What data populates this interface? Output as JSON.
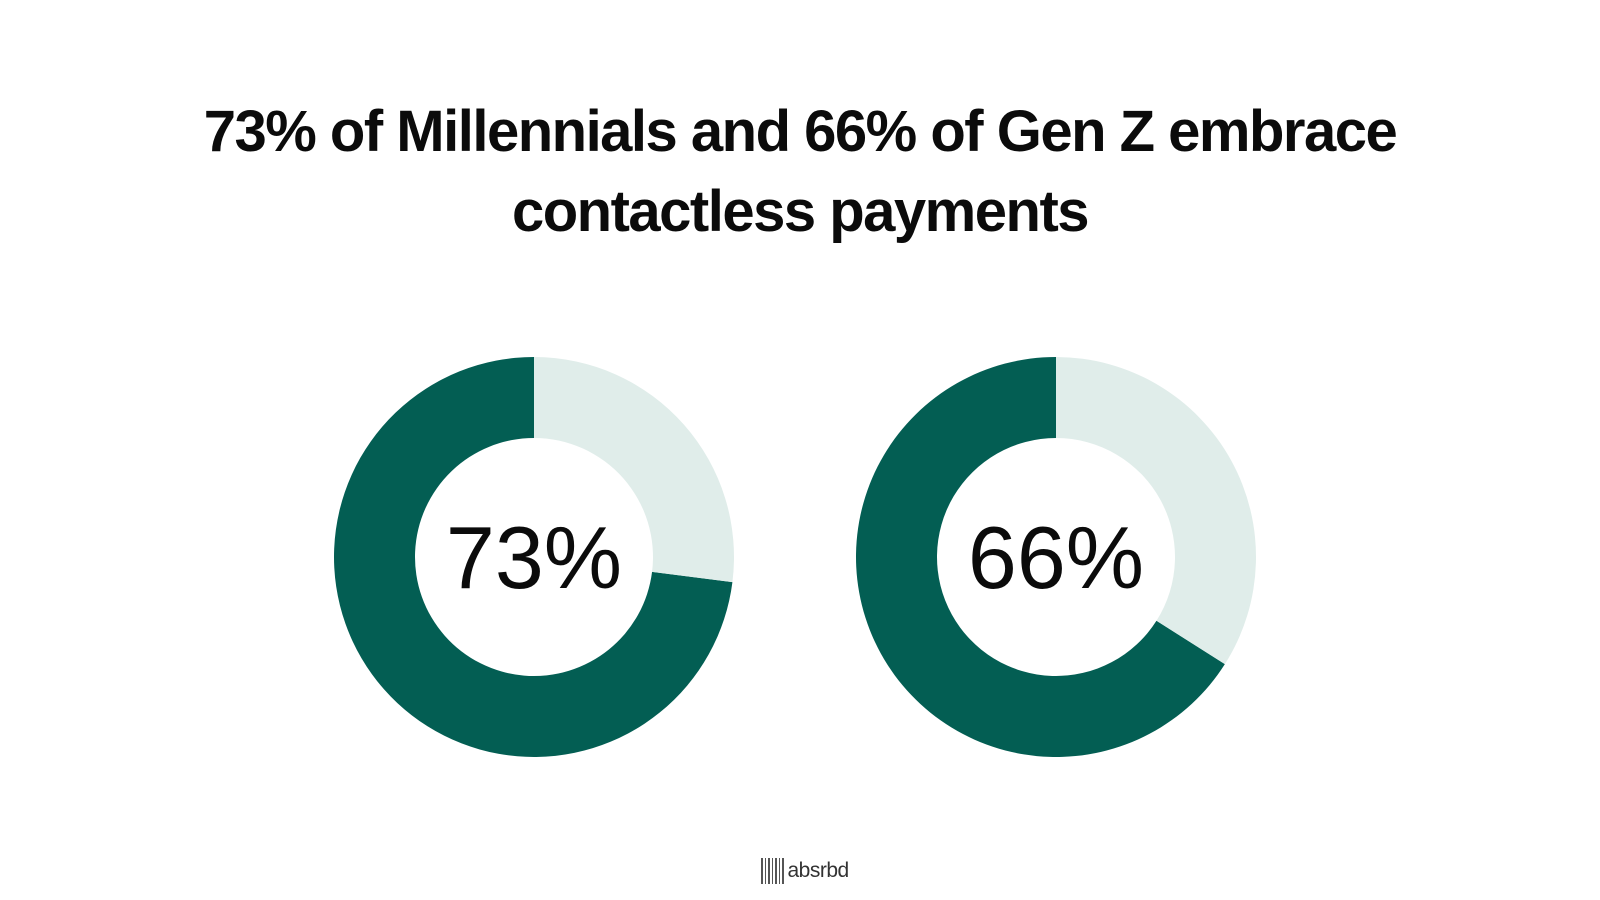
{
  "title": "73% of Millennials and 66% of Gen Z embrace contactless payments",
  "chart_data": [
    {
      "type": "pie",
      "style": "donut",
      "values": [
        73,
        27
      ],
      "center_label": "73%",
      "colors": [
        "#035e53",
        "#e0edea"
      ]
    },
    {
      "type": "pie",
      "style": "donut",
      "values": [
        66,
        34
      ],
      "center_label": "66%",
      "colors": [
        "#035e53",
        "#e0edea"
      ]
    }
  ],
  "brand": {
    "name": "absrbd",
    "icon": "barcode-logo-icon"
  }
}
